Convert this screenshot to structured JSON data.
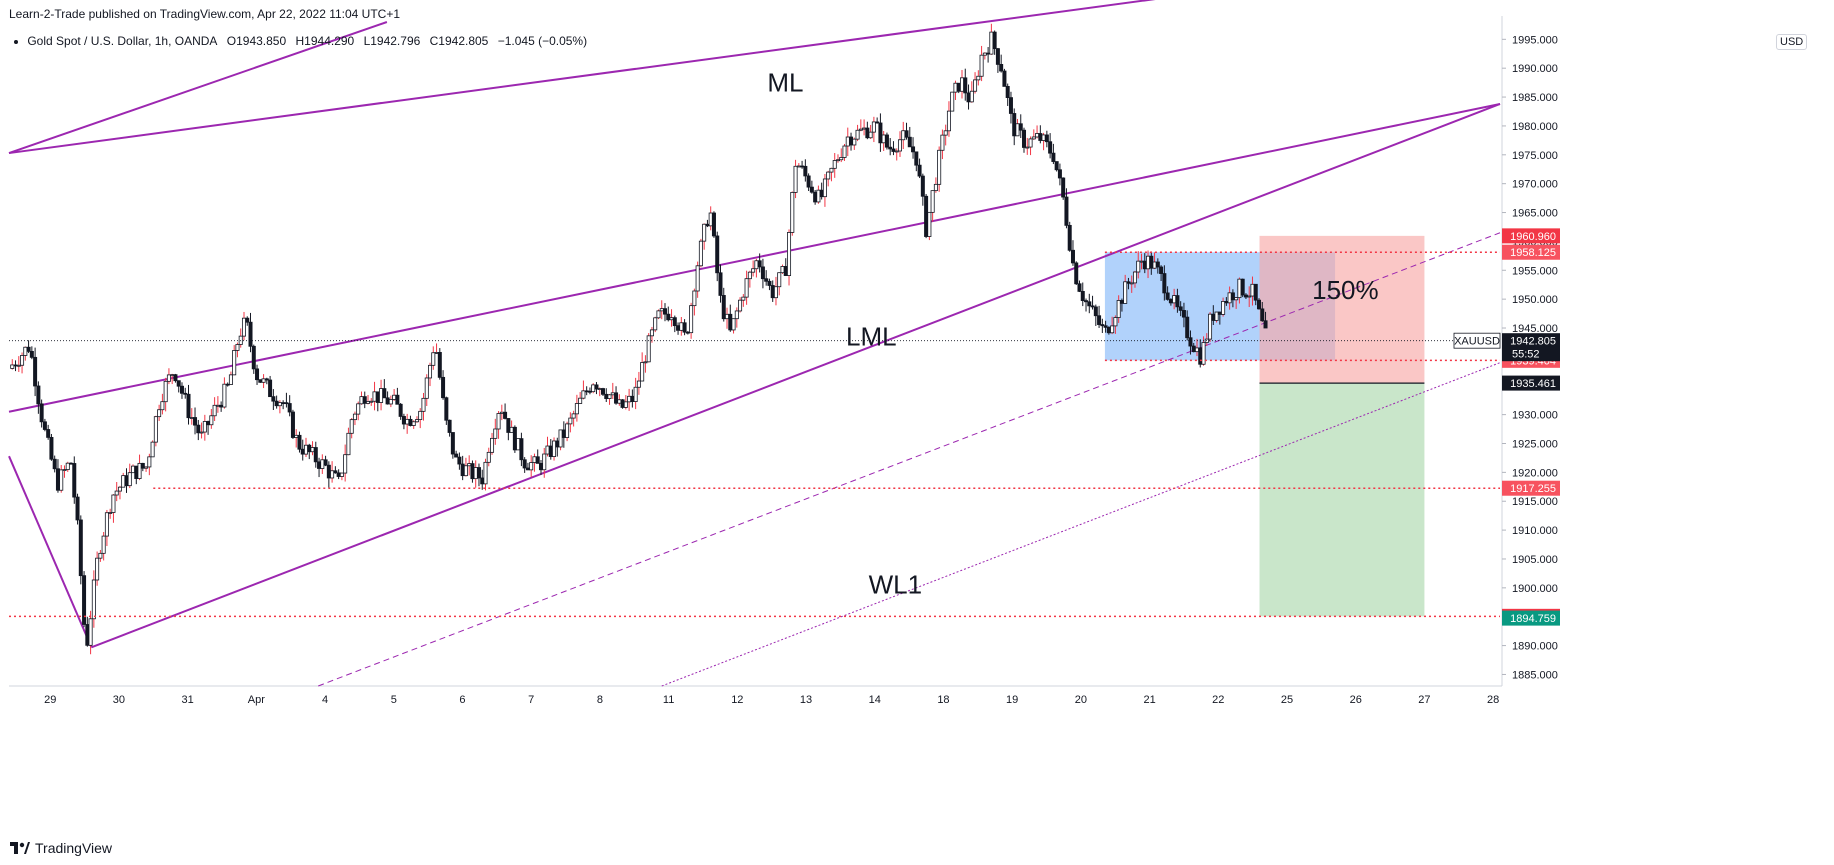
{
  "header": {
    "published": "Learn-2-Trade published on TradingView.com, Apr 22, 2022 11:04 UTC+1",
    "symbol": "Gold Spot / U.S. Dollar, 1h, OANDA",
    "open": "O1943.850",
    "high": "H1944.290",
    "low": "L1942.796",
    "close": "C1942.805",
    "change": "−1.045 (−0.05%)",
    "currency": "USD"
  },
  "footer": {
    "brand": "TradingView"
  },
  "colors": {
    "pitchfork": "#9c27b0",
    "bull_candle": "#ffffff",
    "bear_candle": "#131722",
    "level_red": "#f23645",
    "target_green": "#089981",
    "range_box": "#90bff9",
    "risk_zone": "#f7a9a7",
    "reward_zone": "#a5d6a7"
  },
  "chart_data": {
    "type": "candlestick",
    "instrument": "XAUUSD",
    "interval": "1h",
    "ylim": [
      1883,
      1998
    ],
    "y_ticks": [
      1885,
      1890,
      1895,
      1900,
      1905,
      1910,
      1915,
      1920,
      1925,
      1930,
      1935,
      1940,
      1945,
      1950,
      1955,
      1960,
      1965,
      1970,
      1975,
      1980,
      1985,
      1990,
      1995
    ],
    "y_tick_labels": [
      "1885.000",
      "1890.000",
      "1895.000",
      "1900.000",
      "1905.000",
      "1910.000",
      "1915.000",
      "1920.000",
      "1925.000",
      "1930.000",
      "1935.000",
      "1940.000",
      "1945.000",
      "1950.000",
      "1955.000",
      "1960.000",
      "1965.000",
      "1970.000",
      "1975.000",
      "1980.000",
      "1985.000",
      "1990.000",
      "1995.000"
    ],
    "x_ticks": [
      {
        "label": "29",
        "t": 0.6
      },
      {
        "label": "30",
        "t": 1.6
      },
      {
        "label": "31",
        "t": 2.6
      },
      {
        "label": "Apr",
        "t": 3.6
      },
      {
        "label": "4",
        "t": 4.6
      },
      {
        "label": "5",
        "t": 5.6
      },
      {
        "label": "6",
        "t": 6.6
      },
      {
        "label": "7",
        "t": 7.6
      },
      {
        "label": "8",
        "t": 8.6
      },
      {
        "label": "11",
        "t": 9.6
      },
      {
        "label": "12",
        "t": 10.6
      },
      {
        "label": "13",
        "t": 11.6
      },
      {
        "label": "14",
        "t": 12.6
      },
      {
        "label": "18",
        "t": 13.6
      },
      {
        "label": "19",
        "t": 14.6
      },
      {
        "label": "20",
        "t": 15.6
      },
      {
        "label": "21",
        "t": 16.6
      },
      {
        "label": "22",
        "t": 17.6
      },
      {
        "label": "25",
        "t": 18.6
      },
      {
        "label": "26",
        "t": 19.6
      },
      {
        "label": "27",
        "t": 20.6
      },
      {
        "label": "28",
        "t": 21.6
      }
    ],
    "x_range": [
      0,
      21.7
    ],
    "price_path": [
      [
        0.0,
        1938
      ],
      [
        0.3,
        1942
      ],
      [
        0.5,
        1928
      ],
      [
        0.7,
        1918
      ],
      [
        0.9,
        1922
      ],
      [
        1.0,
        1910
      ],
      [
        1.12,
        1889
      ],
      [
        1.3,
        1906
      ],
      [
        1.5,
        1916
      ],
      [
        1.8,
        1920
      ],
      [
        2.0,
        1921
      ],
      [
        2.2,
        1933
      ],
      [
        2.4,
        1938
      ],
      [
        2.6,
        1931
      ],
      [
        2.8,
        1926
      ],
      [
        3.0,
        1931
      ],
      [
        3.2,
        1935
      ],
      [
        3.35,
        1944
      ],
      [
        3.45,
        1946
      ],
      [
        3.6,
        1937
      ],
      [
        3.8,
        1934
      ],
      [
        4.0,
        1932
      ],
      [
        4.2,
        1925
      ],
      [
        4.4,
        1923
      ],
      [
        4.6,
        1921
      ],
      [
        4.8,
        1918
      ],
      [
        5.0,
        1930
      ],
      [
        5.2,
        1934
      ],
      [
        5.4,
        1933
      ],
      [
        5.6,
        1932
      ],
      [
        5.8,
        1929
      ],
      [
        6.0,
        1931
      ],
      [
        6.2,
        1943
      ],
      [
        6.35,
        1929
      ],
      [
        6.5,
        1922
      ],
      [
        6.7,
        1920
      ],
      [
        6.9,
        1919
      ],
      [
        7.0,
        1926
      ],
      [
        7.15,
        1932
      ],
      [
        7.3,
        1927
      ],
      [
        7.5,
        1922
      ],
      [
        7.7,
        1921
      ],
      [
        7.9,
        1924
      ],
      [
        8.1,
        1927
      ],
      [
        8.3,
        1932
      ],
      [
        8.5,
        1936
      ],
      [
        8.7,
        1934
      ],
      [
        8.9,
        1931
      ],
      [
        9.1,
        1933
      ],
      [
        9.25,
        1940
      ],
      [
        9.45,
        1947
      ],
      [
        9.65,
        1948
      ],
      [
        9.85,
        1943
      ],
      [
        10.0,
        1955
      ],
      [
        10.2,
        1966
      ],
      [
        10.35,
        1950
      ],
      [
        10.5,
        1944
      ],
      [
        10.7,
        1952
      ],
      [
        10.9,
        1957
      ],
      [
        11.1,
        1951
      ],
      [
        11.3,
        1955
      ],
      [
        11.45,
        1974
      ],
      [
        11.6,
        1971
      ],
      [
        11.8,
        1967
      ],
      [
        12.0,
        1973
      ],
      [
        12.2,
        1978
      ],
      [
        12.4,
        1979
      ],
      [
        12.6,
        1980
      ],
      [
        12.8,
        1976
      ],
      [
        13.0,
        1978
      ],
      [
        13.2,
        1975
      ],
      [
        13.35,
        1962
      ],
      [
        13.5,
        1972
      ],
      [
        13.7,
        1984
      ],
      [
        13.85,
        1988
      ],
      [
        14.0,
        1984
      ],
      [
        14.15,
        1992
      ],
      [
        14.3,
        1995
      ],
      [
        14.45,
        1990
      ],
      [
        14.6,
        1980
      ],
      [
        14.8,
        1977
      ],
      [
        15.0,
        1978
      ],
      [
        15.2,
        1975
      ],
      [
        15.35,
        1967
      ],
      [
        15.5,
        1955
      ],
      [
        15.65,
        1950
      ],
      [
        15.8,
        1947
      ],
      [
        15.95,
        1944
      ],
      [
        16.1,
        1948
      ],
      [
        16.3,
        1953
      ],
      [
        16.5,
        1957
      ],
      [
        16.65,
        1956
      ],
      [
        16.8,
        1953
      ],
      [
        17.0,
        1948
      ],
      [
        17.2,
        1943
      ],
      [
        17.35,
        1940
      ],
      [
        17.5,
        1947
      ],
      [
        17.7,
        1950
      ],
      [
        17.9,
        1952
      ],
      [
        18.1,
        1951
      ],
      [
        18.3,
        1943
      ]
    ],
    "lines": [
      {
        "name": "ML",
        "label": "ML",
        "x1": 0.0,
        "y1": 1975.3,
        "x2": 21.7,
        "y2": 2010
      },
      {
        "name": "upper-left-parallel",
        "x1": 0.0,
        "y1": 1975.3,
        "x2": 5.5,
        "y2": 1998
      },
      {
        "name": "pitchfork-upper",
        "x1": 0.0,
        "y1": 1930.5,
        "x2": 21.7,
        "y2": 1983.8
      },
      {
        "name": "LML",
        "label": "LML",
        "x1": 1.2,
        "y1": 1889.7,
        "x2": 21.7,
        "y2": 1983.8
      },
      {
        "name": "pitchfork-handle",
        "x1": 0.0,
        "y1": 1922.8,
        "x2": 1.2,
        "y2": 1889.7
      }
    ],
    "dashed_lines": [
      {
        "name": "median-dashed",
        "x1": 4.5,
        "y1": 1883,
        "x2": 21.7,
        "y2": 1961.5
      },
      {
        "name": "WL1",
        "label": "WL1",
        "x1": 9.5,
        "y1": 1883,
        "x2": 21.7,
        "y2": 1939
      }
    ],
    "levels": [
      {
        "name": "resistance",
        "value": 1958.125,
        "label": "1958.125",
        "x_start": 15.95
      },
      {
        "name": "support-box",
        "value": 1939.404,
        "label": "1939.404",
        "x_start": 15.95
      },
      {
        "name": "support-1",
        "value": 1917.255,
        "label": "1917.255",
        "x_start": 2.1
      },
      {
        "name": "support-2",
        "value": 1895.065,
        "label": "1895.065",
        "x_start": 0.0
      }
    ],
    "current_price": {
      "value": 1942.805,
      "label": "1942.805",
      "timer": "55:52",
      "symbol": "XAUUSD"
    },
    "range_box": {
      "x1": 15.95,
      "x2": 19.3,
      "y1": 1939.404,
      "y2": 1958.125
    },
    "position": {
      "x1": 18.2,
      "x2": 20.6,
      "stop": 1960.96,
      "stop_label": "1960.960",
      "entry": 1935.461,
      "entry_label": "1935.461",
      "target": 1894.759,
      "target_label": "1894.759",
      "target_zone_top": 1895.065
    },
    "annotations": [
      {
        "text": "ML",
        "x": 11.3,
        "y": 1986
      },
      {
        "text": "LML",
        "x": 12.55,
        "y": 1942
      },
      {
        "text": "WL1",
        "x": 12.9,
        "y": 1899
      },
      {
        "text": "150%",
        "x": 19.45,
        "y": 1950
      }
    ]
  }
}
